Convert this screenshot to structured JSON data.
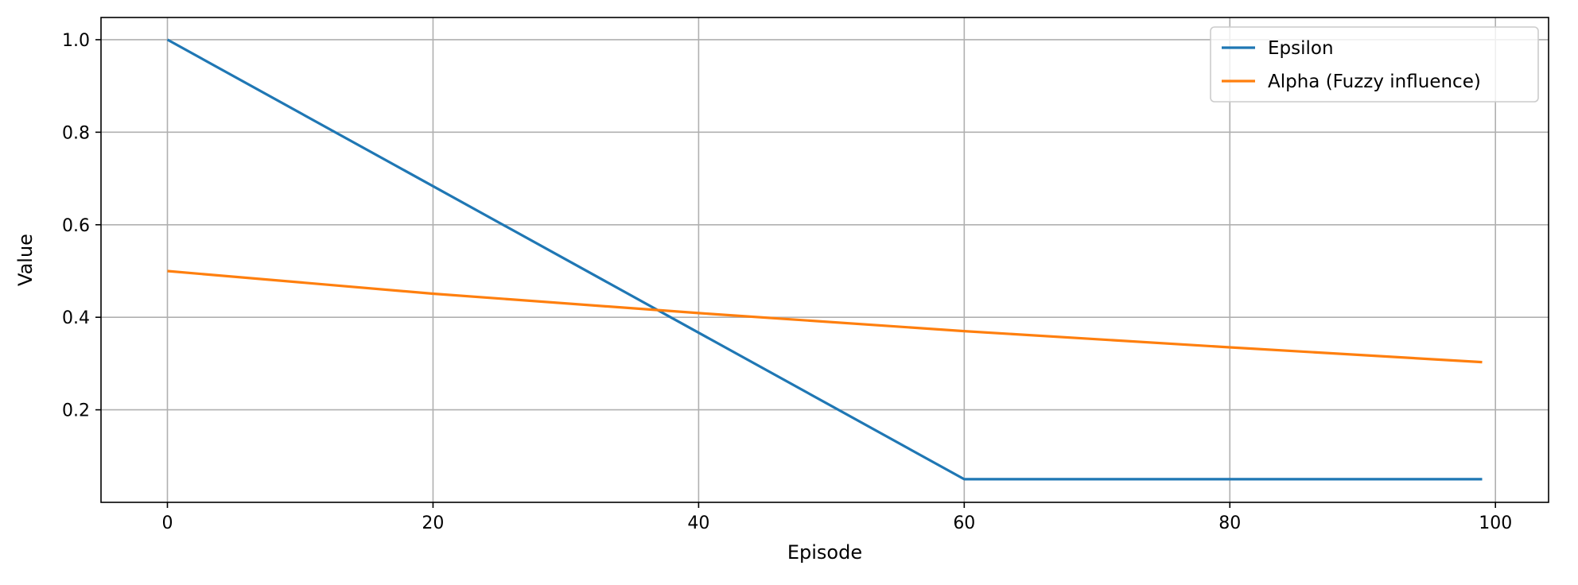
{
  "chart_data": {
    "type": "line",
    "title": "",
    "xlabel": "Episode",
    "ylabel": "Value",
    "xlim": [
      -5,
      104
    ],
    "ylim": [
      0.0,
      1.048
    ],
    "xticks": [
      0,
      20,
      40,
      60,
      80,
      100
    ],
    "xtick_labels": [
      "0",
      "20",
      "40",
      "60",
      "80",
      "100"
    ],
    "yticks": [
      0.2,
      0.4,
      0.6,
      0.8,
      1.0
    ],
    "ytick_labels": [
      "0.2",
      "0.4",
      "0.6",
      "0.8",
      "1.0"
    ],
    "grid": true,
    "legend_position": "upper right",
    "series": [
      {
        "name": "Epsilon",
        "color": "#1f77b4",
        "x": [
          0,
          60,
          99
        ],
        "y": [
          1.0,
          0.05,
          0.05
        ]
      },
      {
        "name": "Alpha (Fuzzy influence)",
        "color": "#ff7f0e",
        "x": [
          0,
          20,
          40,
          60,
          80,
          99
        ],
        "y": [
          0.5,
          0.451,
          0.409,
          0.37,
          0.335,
          0.303
        ]
      }
    ]
  }
}
